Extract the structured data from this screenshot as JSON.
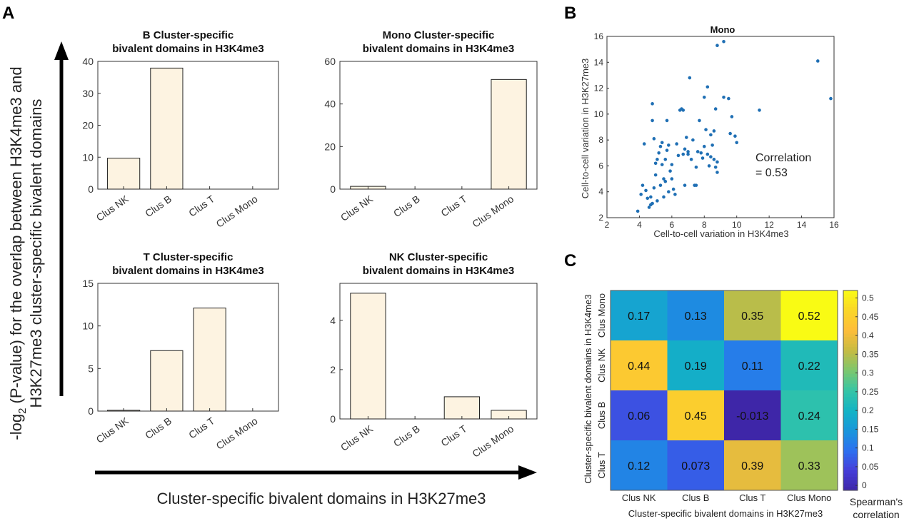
{
  "panel_labels": {
    "a": "A",
    "b": "B",
    "c": "C"
  },
  "panel_a": {
    "y_axis_label_line1": "-log",
    "y_axis_label_sub": "2",
    "y_axis_label_rest": " (P-value) for the overlap between H3K4me3 and",
    "y_axis_label_line2": "H3K27me3 cluster-specific bivalent domains",
    "x_axis_label": "Cluster-specific bivalent domains in H3K27me3",
    "bar_fill": "#fdf3e1",
    "bar_stroke": "#222222"
  },
  "chart_data": [
    {
      "type": "bar",
      "title_line1": "B Cluster-specific",
      "title_line2": "bivalent domains in H3K4me3",
      "categories": [
        "Clus NK",
        "Clus B",
        "Clus T",
        "Clus Mono"
      ],
      "values": [
        9.7,
        37.9,
        0,
        0
      ],
      "ylim": [
        0,
        40
      ],
      "yticks": [
        0,
        10,
        20,
        30,
        40
      ]
    },
    {
      "type": "bar",
      "title_line1": "Mono Cluster-specific",
      "title_line2": "bivalent domains in H3K4me3",
      "categories": [
        "Clus NK",
        "Clus B",
        "Clus T",
        "Clus Mono"
      ],
      "values": [
        1.3,
        0,
        0,
        51.5
      ],
      "ylim": [
        0,
        60
      ],
      "yticks": [
        0,
        20,
        40,
        60
      ]
    },
    {
      "type": "bar",
      "title_line1": "T Cluster-specific",
      "title_line2": "bivalent domains in H3K4me3",
      "categories": [
        "Clus NK",
        "Clus B",
        "Clus T",
        "Clus Mono"
      ],
      "values": [
        0.1,
        7.1,
        12.1,
        0
      ],
      "ylim": [
        0,
        15
      ],
      "yticks": [
        0,
        5,
        10,
        15
      ]
    },
    {
      "type": "bar",
      "title_line1": "NK Cluster-specific",
      "title_line2": "bivalent domains in H3K4me3",
      "categories": [
        "Clus NK",
        "Clus B",
        "Clus T",
        "Clus Mono"
      ],
      "values": [
        5.1,
        0,
        0.9,
        0.35
      ],
      "ylim": [
        0,
        5.5
      ],
      "yticks": [
        0,
        2,
        4
      ]
    },
    {
      "type": "scatter",
      "title": "Mono",
      "xlabel": "Cell-to-cell variation in H3K4me3",
      "ylabel": "Cell-to-cell variation in H3K27me3",
      "xlim": [
        2,
        16
      ],
      "ylim": [
        2,
        16
      ],
      "xticks": [
        2,
        4,
        6,
        8,
        10,
        12,
        14,
        16
      ],
      "yticks": [
        2,
        4,
        6,
        8,
        10,
        12,
        14,
        16
      ],
      "annotation_line1": "Correlation",
      "annotation_line2": "= 0.53",
      "point_color": "#1f6fb4",
      "points": [
        [
          3.9,
          2.5
        ],
        [
          4.1,
          3.8
        ],
        [
          4.2,
          4.5
        ],
        [
          4.3,
          7.7
        ],
        [
          4.4,
          4.1
        ],
        [
          4.5,
          3.5
        ],
        [
          4.6,
          2.8
        ],
        [
          4.7,
          3.0
        ],
        [
          4.7,
          3.6
        ],
        [
          4.8,
          3.1
        ],
        [
          4.8,
          9.5
        ],
        [
          4.8,
          10.8
        ],
        [
          4.9,
          4.3
        ],
        [
          4.9,
          8.1
        ],
        [
          5.0,
          5.3
        ],
        [
          5.0,
          6.2
        ],
        [
          5.1,
          3.3
        ],
        [
          5.1,
          6.5
        ],
        [
          5.2,
          7.0
        ],
        [
          5.3,
          4.5
        ],
        [
          5.3,
          7.5
        ],
        [
          5.4,
          6.1
        ],
        [
          5.4,
          7.8
        ],
        [
          5.5,
          3.6
        ],
        [
          5.5,
          5.0
        ],
        [
          5.6,
          4.8
        ],
        [
          5.6,
          6.5
        ],
        [
          5.7,
          7.2
        ],
        [
          5.7,
          9.5
        ],
        [
          5.8,
          4.0
        ],
        [
          5.8,
          7.6
        ],
        [
          5.9,
          5.6
        ],
        [
          6.0,
          5.0
        ],
        [
          6.0,
          6.1
        ],
        [
          6.1,
          4.2
        ],
        [
          6.2,
          3.8
        ],
        [
          6.3,
          7.7
        ],
        [
          6.4,
          6.8
        ],
        [
          6.5,
          10.3
        ],
        [
          6.6,
          10.4
        ],
        [
          6.7,
          10.3
        ],
        [
          6.7,
          6.9
        ],
        [
          6.8,
          7.3
        ],
        [
          6.8,
          4.5
        ],
        [
          6.9,
          8.2
        ],
        [
          7.0,
          6.9
        ],
        [
          7.0,
          7.1
        ],
        [
          7.1,
          12.8
        ],
        [
          7.2,
          6.5
        ],
        [
          7.3,
          8.0
        ],
        [
          7.4,
          4.5
        ],
        [
          7.5,
          4.5
        ],
        [
          7.5,
          5.9
        ],
        [
          7.6,
          7.1
        ],
        [
          7.7,
          9.5
        ],
        [
          7.8,
          7.0
        ],
        [
          7.9,
          6.6
        ],
        [
          8.0,
          7.5
        ],
        [
          8.0,
          11.3
        ],
        [
          8.1,
          8.8
        ],
        [
          8.2,
          6.9
        ],
        [
          8.2,
          12.1
        ],
        [
          8.3,
          6.0
        ],
        [
          8.4,
          8.4
        ],
        [
          8.4,
          6.7
        ],
        [
          8.5,
          7.6
        ],
        [
          8.6,
          8.7
        ],
        [
          8.6,
          6.5
        ],
        [
          8.7,
          5.9
        ],
        [
          8.7,
          10.4
        ],
        [
          8.8,
          6.3
        ],
        [
          8.8,
          5.5
        ],
        [
          8.8,
          15.3
        ],
        [
          9.2,
          15.6
        ],
        [
          9.2,
          11.3
        ],
        [
          9.5,
          11.2
        ],
        [
          9.6,
          8.5
        ],
        [
          9.7,
          9.8
        ],
        [
          9.9,
          8.3
        ],
        [
          10.0,
          7.8
        ],
        [
          11.4,
          10.3
        ],
        [
          15.0,
          14.1
        ],
        [
          15.8,
          11.2
        ]
      ]
    },
    {
      "type": "heatmap",
      "xlabel": "Cluster-specific bivalent domains in H3K27me3",
      "ylabel": "Cluster-specific bivalent domains in H3K4me3",
      "x_categories": [
        "Clus NK",
        "Clus B",
        "Clus T",
        "Clus Mono"
      ],
      "y_categories": [
        "Clus Mono",
        "Clus NK",
        "Clus B",
        "Clus T"
      ],
      "value_labels": [
        [
          "0.17",
          "0.13",
          "0.35",
          "0.52"
        ],
        [
          "0.44",
          "0.19",
          "0.11",
          "0.22"
        ],
        [
          "0.06",
          "0.45",
          "-0.013",
          "0.24"
        ],
        [
          "0.12",
          "0.073",
          "0.39",
          "0.33"
        ]
      ],
      "values": [
        [
          0.17,
          0.13,
          0.35,
          0.52
        ],
        [
          0.44,
          0.19,
          0.11,
          0.22
        ],
        [
          0.06,
          0.45,
          -0.013,
          0.24
        ],
        [
          0.12,
          0.073,
          0.39,
          0.33
        ]
      ],
      "color_range": [
        -0.013,
        0.52
      ],
      "colormap": "parula",
      "colorbar_ticks": [
        "0.5",
        "0.45",
        "0.4",
        "0.35",
        "0.3",
        "0.25",
        "0.2",
        "0.15",
        "0.1",
        "0.05",
        "0"
      ],
      "colorbar_tick_values": [
        0.5,
        0.45,
        0.4,
        0.35,
        0.3,
        0.25,
        0.2,
        0.15,
        0.1,
        0.05,
        0
      ],
      "colorbar_label_line1": "Spearman's",
      "colorbar_label_line2": "correlation"
    }
  ]
}
